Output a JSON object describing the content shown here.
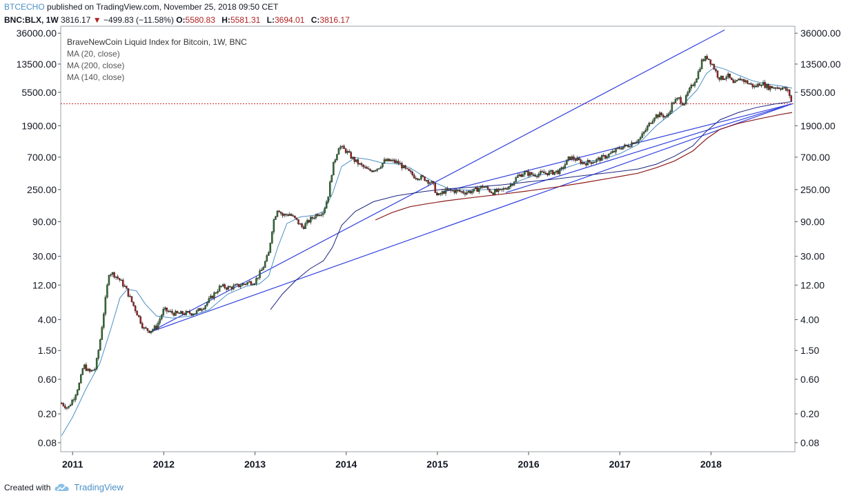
{
  "header": {
    "author": "BTCECHO",
    "published_text": "published on TradingView.com, November 25, 2018 09:50 CET",
    "symbol": "BNC:BLX, 1W",
    "last": "3816.17",
    "change_arrow": "▼",
    "change": "−499.83 (−11.58%)",
    "open_label": "O:",
    "open": "5580.83",
    "high_label": "H:",
    "high": "5581.31",
    "low_label": "L:",
    "low": "3694.01",
    "close_label": "C:",
    "close": "3816.17"
  },
  "legend": {
    "title": "BraveNewCoin Liquid Index for Bitcoin, 1W, BNC",
    "indicators": [
      "MA (20, close)",
      "MA (200, close)",
      "MA (140, close)"
    ]
  },
  "footer": {
    "created_with": "Created with",
    "brand": "TradingView",
    "logo_icon": "tradingview-cloud-icon"
  },
  "colors": {
    "candle_up": "#2e7d32",
    "candle_down": "#b71c1c",
    "ma20": "#4a8fc4",
    "ma140": "#1a237e",
    "ma200": "#8b1a1a",
    "trendline": "#2f3fe0",
    "price_line": "#c62828"
  },
  "chart_data": {
    "type": "candlestick",
    "y_scale": "log",
    "y_ticks": [
      "36000.00",
      "13500.00",
      "5500.00",
      "1900.00",
      "700.00",
      "250.00",
      "90.00",
      "30.00",
      "12.00",
      "4.00",
      "1.50",
      "0.60",
      "0.20",
      "0.08"
    ],
    "x_ticks": [
      "2011",
      "2012",
      "2013",
      "2014",
      "2015",
      "2016",
      "2017",
      "2018"
    ],
    "x_range": [
      2010.87,
      2018.92
    ],
    "y_range": [
      0.06,
      45000
    ],
    "price_line": 3816.17,
    "price_path": [
      [
        2010.88,
        0.28
      ],
      [
        2010.95,
        0.24
      ],
      [
        2011.02,
        0.35
      ],
      [
        2011.08,
        0.55
      ],
      [
        2011.12,
        0.95
      ],
      [
        2011.18,
        0.75
      ],
      [
        2011.25,
        0.85
      ],
      [
        2011.3,
        2.0
      ],
      [
        2011.35,
        6.0
      ],
      [
        2011.4,
        18.0
      ],
      [
        2011.45,
        17.0
      ],
      [
        2011.52,
        14.0
      ],
      [
        2011.58,
        11.0
      ],
      [
        2011.65,
        7.0
      ],
      [
        2011.72,
        4.5
      ],
      [
        2011.78,
        3.0
      ],
      [
        2011.85,
        2.8
      ],
      [
        2011.92,
        3.2
      ],
      [
        2012.0,
        5.5
      ],
      [
        2012.08,
        5.0
      ],
      [
        2012.15,
        4.8
      ],
      [
        2012.25,
        4.9
      ],
      [
        2012.35,
        5.0
      ],
      [
        2012.45,
        6.3
      ],
      [
        2012.55,
        9.0
      ],
      [
        2012.62,
        11.5
      ],
      [
        2012.72,
        11.0
      ],
      [
        2012.82,
        11.8
      ],
      [
        2012.92,
        13.0
      ],
      [
        2013.0,
        13.5
      ],
      [
        2013.08,
        20.0
      ],
      [
        2013.15,
        33.0
      ],
      [
        2013.2,
        90.0
      ],
      [
        2013.25,
        140.0
      ],
      [
        2013.3,
        110.0
      ],
      [
        2013.38,
        115.0
      ],
      [
        2013.45,
        95.0
      ],
      [
        2013.52,
        75.0
      ],
      [
        2013.6,
        95.0
      ],
      [
        2013.68,
        115.0
      ],
      [
        2013.75,
        125.0
      ],
      [
        2013.8,
        200.0
      ],
      [
        2013.85,
        500.0
      ],
      [
        2013.92,
        1000.0
      ],
      [
        2014.0,
        850.0
      ],
      [
        2014.08,
        650.0
      ],
      [
        2014.15,
        550.0
      ],
      [
        2014.25,
        450.0
      ],
      [
        2014.35,
        500.0
      ],
      [
        2014.42,
        620.0
      ],
      [
        2014.5,
        620.0
      ],
      [
        2014.58,
        580.0
      ],
      [
        2014.65,
        470.0
      ],
      [
        2014.75,
        380.0
      ],
      [
        2014.85,
        360.0
      ],
      [
        2014.95,
        300.0
      ],
      [
        2015.0,
        200.0
      ],
      [
        2015.08,
        240.0
      ],
      [
        2015.2,
        240.0
      ],
      [
        2015.3,
        230.0
      ],
      [
        2015.4,
        240.0
      ],
      [
        2015.5,
        280.0
      ],
      [
        2015.6,
        230.0
      ],
      [
        2015.7,
        240.0
      ],
      [
        2015.8,
        290.0
      ],
      [
        2015.88,
        380.0
      ],
      [
        2015.95,
        430.0
      ],
      [
        2016.05,
        400.0
      ],
      [
        2016.15,
        420.0
      ],
      [
        2016.25,
        430.0
      ],
      [
        2016.35,
        450.0
      ],
      [
        2016.45,
        700.0
      ],
      [
        2016.52,
        650.0
      ],
      [
        2016.6,
        580.0
      ],
      [
        2016.72,
        620.0
      ],
      [
        2016.82,
        700.0
      ],
      [
        2016.9,
        780.0
      ],
      [
        2017.0,
        950.0
      ],
      [
        2017.08,
        1000.0
      ],
      [
        2017.15,
        1150.0
      ],
      [
        2017.22,
        1250.0
      ],
      [
        2017.3,
        1800.0
      ],
      [
        2017.38,
        2600.0
      ],
      [
        2017.45,
        2700.0
      ],
      [
        2017.52,
        2500.0
      ],
      [
        2017.58,
        4000.0
      ],
      [
        2017.65,
        4500.0
      ],
      [
        2017.7,
        3800.0
      ],
      [
        2017.75,
        5500.0
      ],
      [
        2017.8,
        7000.0
      ],
      [
        2017.85,
        9500.0
      ],
      [
        2017.9,
        15000.0
      ],
      [
        2017.96,
        17000.0
      ],
      [
        2018.02,
        13000.0
      ],
      [
        2018.08,
        9000.0
      ],
      [
        2018.12,
        8500.0
      ],
      [
        2018.18,
        9500.0
      ],
      [
        2018.25,
        7000.0
      ],
      [
        2018.32,
        8500.0
      ],
      [
        2018.4,
        7500.0
      ],
      [
        2018.48,
        6500.0
      ],
      [
        2018.55,
        7500.0
      ],
      [
        2018.62,
        6500.0
      ],
      [
        2018.7,
        6500.0
      ],
      [
        2018.78,
        6400.0
      ],
      [
        2018.85,
        5600.0
      ],
      [
        2018.89,
        3816.0
      ]
    ],
    "ma20": [
      [
        2010.88,
        0.1
      ],
      [
        2011.0,
        0.18
      ],
      [
        2011.15,
        0.45
      ],
      [
        2011.3,
        1.0
      ],
      [
        2011.42,
        3.0
      ],
      [
        2011.52,
        8.0
      ],
      [
        2011.6,
        10.5
      ],
      [
        2011.7,
        10.0
      ],
      [
        2011.8,
        6.5
      ],
      [
        2011.92,
        4.5
      ],
      [
        2012.1,
        4.2
      ],
      [
        2012.3,
        4.5
      ],
      [
        2012.5,
        5.5
      ],
      [
        2012.7,
        9.0
      ],
      [
        2012.9,
        11.5
      ],
      [
        2013.05,
        12.5
      ],
      [
        2013.15,
        16.0
      ],
      [
        2013.25,
        40.0
      ],
      [
        2013.35,
        85.0
      ],
      [
        2013.5,
        105.0
      ],
      [
        2013.65,
        110.0
      ],
      [
        2013.75,
        125.0
      ],
      [
        2013.85,
        220.0
      ],
      [
        2013.95,
        520.0
      ],
      [
        2014.1,
        690.0
      ],
      [
        2014.25,
        650.0
      ],
      [
        2014.4,
        580.0
      ],
      [
        2014.55,
        570.0
      ],
      [
        2014.7,
        500.0
      ],
      [
        2014.85,
        380.0
      ],
      [
        2015.0,
        300.0
      ],
      [
        2015.15,
        250.0
      ],
      [
        2015.35,
        245.0
      ],
      [
        2015.55,
        250.0
      ],
      [
        2015.75,
        255.0
      ],
      [
        2015.9,
        330.0
      ],
      [
        2016.05,
        390.0
      ],
      [
        2016.25,
        420.0
      ],
      [
        2016.45,
        520.0
      ],
      [
        2016.6,
        600.0
      ],
      [
        2016.8,
        650.0
      ],
      [
        2017.0,
        780.0
      ],
      [
        2017.2,
        1050.0
      ],
      [
        2017.4,
        1900.0
      ],
      [
        2017.55,
        2700.0
      ],
      [
        2017.7,
        3800.0
      ],
      [
        2017.85,
        6000.0
      ],
      [
        2017.95,
        10000.0
      ],
      [
        2018.05,
        12500.0
      ],
      [
        2018.15,
        11500.0
      ],
      [
        2018.3,
        9500.0
      ],
      [
        2018.45,
        8000.0
      ],
      [
        2018.6,
        7200.0
      ],
      [
        2018.75,
        6800.0
      ],
      [
        2018.89,
        6300.0
      ]
    ],
    "ma140": [
      [
        2013.17,
        5.5
      ],
      [
        2013.3,
        9.0
      ],
      [
        2013.45,
        14.0
      ],
      [
        2013.6,
        20.0
      ],
      [
        2013.75,
        26.0
      ],
      [
        2013.85,
        40.0
      ],
      [
        2013.95,
        80.0
      ],
      [
        2014.1,
        125.0
      ],
      [
        2014.3,
        170.0
      ],
      [
        2014.55,
        205.0
      ],
      [
        2014.85,
        235.0
      ],
      [
        2015.1,
        255.0
      ],
      [
        2015.4,
        270.0
      ],
      [
        2015.7,
        290.0
      ],
      [
        2016.0,
        320.0
      ],
      [
        2016.3,
        350.0
      ],
      [
        2016.6,
        390.0
      ],
      [
        2016.9,
        430.0
      ],
      [
        2017.2,
        480.0
      ],
      [
        2017.4,
        560.0
      ],
      [
        2017.6,
        720.0
      ],
      [
        2017.8,
        1000.0
      ],
      [
        2017.95,
        1600.0
      ],
      [
        2018.1,
        2300.0
      ],
      [
        2018.3,
        2900.0
      ],
      [
        2018.5,
        3400.0
      ],
      [
        2018.7,
        3800.0
      ],
      [
        2018.89,
        4100.0
      ]
    ],
    "ma200": [
      [
        2014.32,
        95.0
      ],
      [
        2014.5,
        120.0
      ],
      [
        2014.7,
        145.0
      ],
      [
        2014.9,
        160.0
      ],
      [
        2015.1,
        175.0
      ],
      [
        2015.4,
        195.0
      ],
      [
        2015.7,
        215.0
      ],
      [
        2016.0,
        240.0
      ],
      [
        2016.3,
        270.0
      ],
      [
        2016.6,
        310.0
      ],
      [
        2016.9,
        360.0
      ],
      [
        2017.2,
        420.0
      ],
      [
        2017.4,
        500.0
      ],
      [
        2017.6,
        620.0
      ],
      [
        2017.8,
        850.0
      ],
      [
        2017.95,
        1250.0
      ],
      [
        2018.1,
        1700.0
      ],
      [
        2018.3,
        2050.0
      ],
      [
        2018.55,
        2400.0
      ],
      [
        2018.75,
        2700.0
      ],
      [
        2018.89,
        2900.0
      ]
    ],
    "trendlines": [
      {
        "from": [
          2011.85,
          2.7
        ],
        "to": [
          2018.89,
          3816.0
        ]
      },
      {
        "from": [
          2015.75,
          227.0
        ],
        "to": [
          2018.89,
          3816.0
        ]
      },
      {
        "from": [
          2015.05,
          230.0
        ],
        "to": [
          2018.89,
          3816.0
        ]
      },
      {
        "from": [
          2011.85,
          2.7
        ],
        "to": [
          2018.15,
          40000.0
        ]
      }
    ]
  }
}
